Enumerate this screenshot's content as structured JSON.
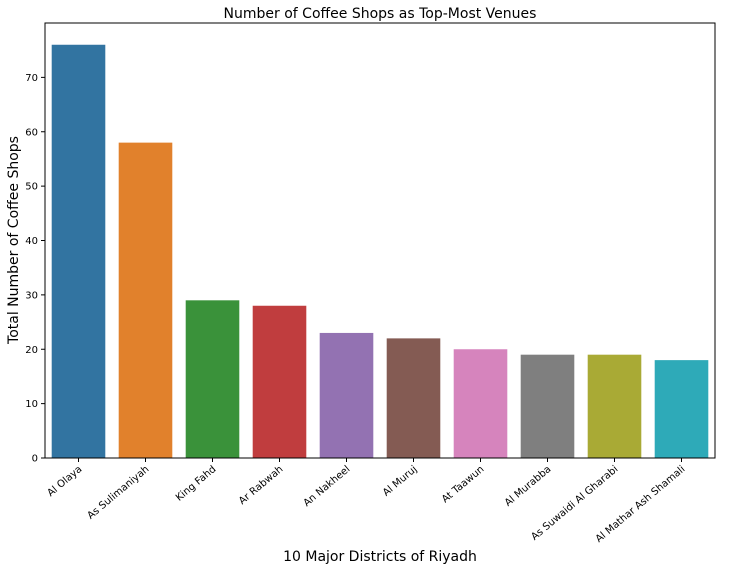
{
  "chart_data": {
    "type": "bar",
    "title": "Number of Coffee Shops as Top-Most Venues",
    "xlabel": "10 Major Districts of Riyadh",
    "ylabel": "Total Number of Coffee Shops",
    "categories": [
      "Al Olaya",
      "As Sulimaniyah",
      "King Fahd",
      "Ar Rabwah",
      "An Nakheel",
      "Al Muruj",
      "At Taawun",
      "Al Murabba",
      "As Suwaidi Al Gharabi",
      "Al Mathar Ash Shamali"
    ],
    "values": [
      76,
      58,
      29,
      28,
      23,
      22,
      20,
      19,
      19,
      18
    ],
    "colors": [
      "#3274a1",
      "#e1812c",
      "#3a923a",
      "#c03d3e",
      "#9372b2",
      "#845b53",
      "#d684bd",
      "#7f7f7f",
      "#a9aa35",
      "#2eaab8"
    ],
    "ylim": [
      0,
      80
    ],
    "yticks": [
      0,
      10,
      20,
      30,
      40,
      50,
      60,
      70
    ],
    "grid": false
  }
}
